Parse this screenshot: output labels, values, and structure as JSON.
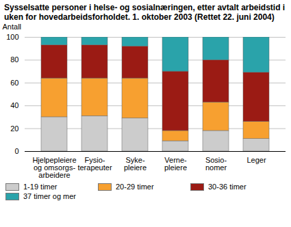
{
  "chart_data": {
    "type": "bar",
    "title": "Sysselsatte personer i helse- og sosialnæringen, etter avtalt arbeidstid i uken for hovedarbeidsforholdet. 1. oktober 2003 (Rettet 22. juni 2004)",
    "y_label": "Antall",
    "stacked": true,
    "grid": true,
    "legend": "bottom",
    "categories": [
      "Hjelpepleiere\nog omsorgs-\narbeidere",
      "Fysio-\nterapeuter",
      "Syke-\npleiere",
      "Verne-\npleiere",
      "Sosio-\nnomer",
      "Leger"
    ],
    "series": [
      {
        "name": "1-19 timer",
        "color": "#cccccc",
        "values": [
          30,
          31,
          29,
          9,
          18,
          11
        ]
      },
      {
        "name": "20-29 timer",
        "color": "#f7a030",
        "values": [
          34,
          33,
          35,
          9,
          25,
          15
        ]
      },
      {
        "name": "30-36 timer",
        "color": "#9b1b14",
        "values": [
          29,
          29,
          28,
          52,
          37,
          43
        ]
      },
      {
        "name": "37 timer og mer",
        "color": "#2aa3aa",
        "values": [
          7,
          7,
          8,
          30,
          20,
          31
        ]
      }
    ],
    "ylim": [
      0,
      100
    ],
    "yticks": [
      0,
      20,
      40,
      60,
      80,
      100
    ]
  }
}
